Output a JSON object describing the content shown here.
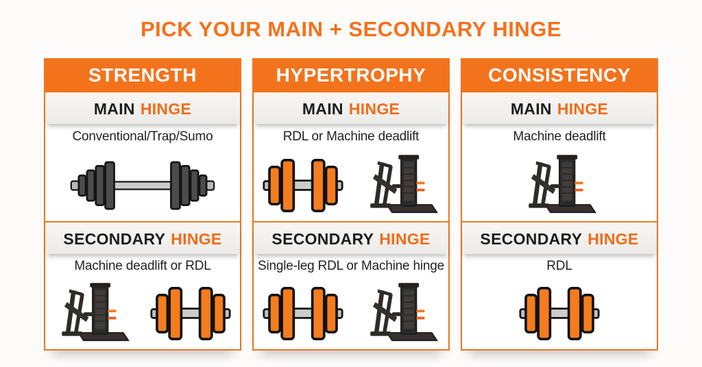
{
  "page": {
    "title": "PICK YOUR MAIN + SECONDARY HINGE"
  },
  "colors": {
    "accent_orange": "#f4711c",
    "header_orange": "#f3731d",
    "border_orange": "#e87722",
    "band_gray": "#efeeec",
    "text_dark": "#1d1d1d",
    "dumbbell_orange": "#f57c1f",
    "machine_charcoal": "#2c2a28"
  },
  "labels": {
    "main_prefix": "MAIN",
    "secondary_prefix": "SECONDARY",
    "hinge": "HINGE"
  },
  "columns": [
    {
      "id": "strength",
      "header": "STRENGTH",
      "main": {
        "exercise": "Conventional/Trap/Sumo",
        "icons": [
          "barbell-icon"
        ]
      },
      "secondary": {
        "exercise": "Machine deadlift or RDL",
        "icons": [
          "machine-icon",
          "dumbbell-icon"
        ]
      }
    },
    {
      "id": "hypertrophy",
      "header": "HYPERTROPHY",
      "main": {
        "exercise": "RDL or Machine deadlift",
        "icons": [
          "dumbbell-icon",
          "machine-icon"
        ]
      },
      "secondary": {
        "exercise": "Single-leg RDL or Machine hinge",
        "icons": [
          "dumbbell-icon",
          "machine-icon"
        ]
      }
    },
    {
      "id": "consistency",
      "header": "CONSISTENCY",
      "main": {
        "exercise": "Machine deadlift",
        "icons": [
          "machine-icon"
        ]
      },
      "secondary": {
        "exercise": "RDL",
        "icons": [
          "dumbbell-icon"
        ]
      }
    }
  ]
}
